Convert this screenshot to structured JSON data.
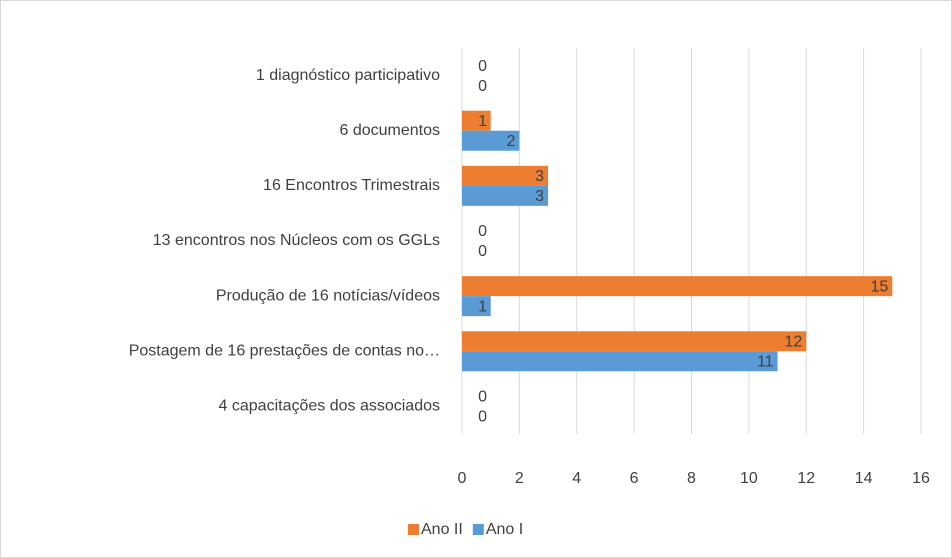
{
  "chart_data": {
    "type": "bar",
    "orientation": "horizontal",
    "categories": [
      "1 diagnóstico participativo",
      "6 documentos",
      "16 Encontros Trimestrais",
      "13 encontros nos Núcleos com os GGLs",
      "Produção de 16 notícias/vídeos",
      "Postagem de 16 prestações de contas no…",
      "4 capacitações dos associados"
    ],
    "series": [
      {
        "name": "Ano II",
        "color": "#ed7d31",
        "values": [
          0,
          1,
          3,
          0,
          15,
          12,
          0
        ]
      },
      {
        "name": "Ano I",
        "color": "#5b9bd5",
        "values": [
          0,
          2,
          3,
          0,
          1,
          11,
          0
        ]
      }
    ],
    "xlim": [
      0,
      16
    ],
    "xticks": [
      0,
      2,
      4,
      6,
      8,
      10,
      12,
      14,
      16
    ],
    "grid": true,
    "legend": "bottom"
  }
}
